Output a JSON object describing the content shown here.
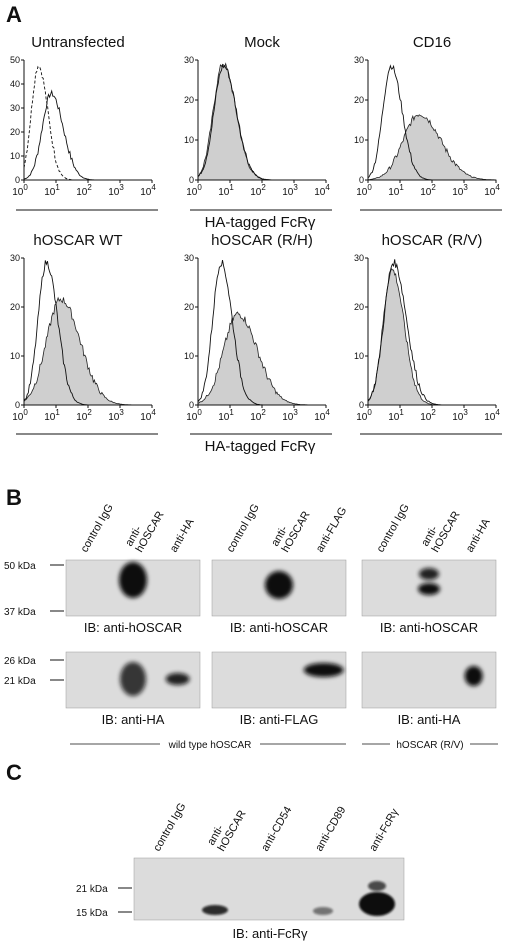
{
  "panel_a": {
    "label": "A",
    "xtick_base": "10",
    "xtick_exponents": [
      "0",
      "1",
      "2",
      "3",
      "4"
    ],
    "rows": [
      {
        "plots": [
          {
            "title": "Untransfected",
            "yticks": [
              "0",
              "10",
              "20",
              "30",
              "40",
              "50"
            ]
          },
          {
            "title": "Mock",
            "yticks": [
              "0",
              "10",
              "20",
              "30"
            ]
          },
          {
            "title": "CD16",
            "yticks": [
              "0",
              "10",
              "20",
              "30"
            ]
          }
        ],
        "xlabel": "HA-tagged FcRγ"
      },
      {
        "plots": [
          {
            "title": "hOSCAR WT",
            "yticks": [
              "0",
              "10",
              "20",
              "30"
            ]
          },
          {
            "title": "hOSCAR (R/H)",
            "yticks": [
              "0",
              "10",
              "20",
              "30"
            ]
          },
          {
            "title": "hOSCAR (R/V)",
            "yticks": [
              "0",
              "10",
              "20",
              "30"
            ]
          }
        ],
        "xlabel": "HA-tagged FcRγ"
      }
    ]
  },
  "panel_b": {
    "label": "B",
    "markers_top": [
      "50 kDa",
      "37 kDa"
    ],
    "markers_bottom": [
      "26 kDa",
      "21 kDa"
    ],
    "groups": [
      {
        "lanes": [
          [
            "control IgG"
          ],
          [
            "anti-",
            "hOSCAR"
          ],
          [
            "anti-HA"
          ]
        ],
        "top_caption": "IB: anti-hOSCAR",
        "bottom_caption": "IB: anti-HA"
      },
      {
        "lanes": [
          [
            "control IgG"
          ],
          [
            "anti-",
            "hOSCAR"
          ],
          [
            "anti-FLAG"
          ]
        ],
        "top_caption": "IB: anti-hOSCAR",
        "bottom_caption": "IB: anti-FLAG"
      },
      {
        "lanes": [
          [
            "control IgG"
          ],
          [
            "anti-",
            "hOSCAR"
          ],
          [
            "anti-HA"
          ]
        ],
        "top_caption": "IB: anti-hOSCAR",
        "bottom_caption": "IB: anti-HA"
      }
    ],
    "footers": [
      "wild type hOSCAR",
      "hOSCAR (R/V)"
    ]
  },
  "panel_c": {
    "label": "C",
    "lanes": [
      [
        "control IgG"
      ],
      [
        "anti-",
        "hOSCAR"
      ],
      [
        "anti-CD54"
      ],
      [
        "anti-CD89"
      ],
      [
        "anti-FcRγ"
      ]
    ],
    "markers": [
      "21 kDa",
      "15 kDa"
    ],
    "caption": "IB: anti-FcRγ"
  }
}
